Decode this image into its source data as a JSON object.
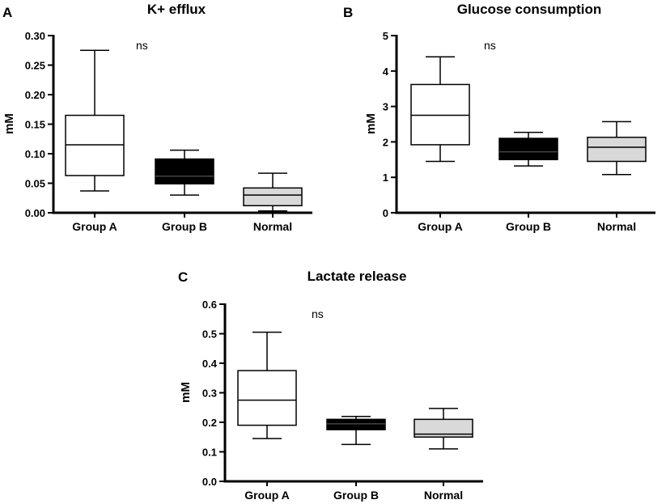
{
  "chart_data": [
    {
      "type": "box",
      "panel": "A",
      "title": "K+ efflux",
      "ylabel": "mM",
      "xlabel": "",
      "ylim": [
        0,
        0.3
      ],
      "yticks": [
        "0.00",
        "0.05",
        "0.10",
        "0.15",
        "0.20",
        "0.25",
        "0.30"
      ],
      "annotation": "ns",
      "categories": [
        "Group A",
        "Group B",
        "Normal"
      ],
      "boxes": [
        {
          "category": "Group A",
          "min": 0.037,
          "q1": 0.063,
          "median": 0.115,
          "q3": 0.165,
          "max": 0.275,
          "fill": "#ffffff"
        },
        {
          "category": "Group B",
          "min": 0.03,
          "q1": 0.049,
          "median": 0.062,
          "q3": 0.091,
          "max": 0.106,
          "fill": "#000000"
        },
        {
          "category": "Normal",
          "min": 0.003,
          "q1": 0.012,
          "median": 0.03,
          "q3": 0.042,
          "max": 0.067,
          "fill": "#d9d9d9"
        }
      ]
    },
    {
      "type": "box",
      "panel": "B",
      "title": "Glucose consumption",
      "ylabel": "mM",
      "xlabel": "",
      "ylim": [
        0,
        5
      ],
      "yticks": [
        "0",
        "1",
        "2",
        "3",
        "4",
        "5"
      ],
      "annotation": "ns",
      "categories": [
        "Group A",
        "Group B",
        "Normal"
      ],
      "boxes": [
        {
          "category": "Group A",
          "min": 1.45,
          "q1": 1.92,
          "median": 2.75,
          "q3": 3.62,
          "max": 4.4,
          "fill": "#ffffff"
        },
        {
          "category": "Group B",
          "min": 1.32,
          "q1": 1.5,
          "median": 1.72,
          "q3": 2.1,
          "max": 2.27,
          "fill": "#000000"
        },
        {
          "category": "Normal",
          "min": 1.08,
          "q1": 1.45,
          "median": 1.85,
          "q3": 2.13,
          "max": 2.57,
          "fill": "#d9d9d9"
        }
      ]
    },
    {
      "type": "box",
      "panel": "C",
      "title": "Lactate release",
      "ylabel": "mM",
      "xlabel": "",
      "ylim": [
        0,
        0.6
      ],
      "yticks": [
        "0.0",
        "0.1",
        "0.2",
        "0.3",
        "0.4",
        "0.5",
        "0.6"
      ],
      "annotation": "ns",
      "categories": [
        "Group A",
        "Group B",
        "Normal"
      ],
      "boxes": [
        {
          "category": "Group A",
          "min": 0.145,
          "q1": 0.19,
          "median": 0.275,
          "q3": 0.375,
          "max": 0.505,
          "fill": "#ffffff"
        },
        {
          "category": "Group B",
          "min": 0.125,
          "q1": 0.175,
          "median": 0.195,
          "q3": 0.21,
          "max": 0.22,
          "fill": "#000000"
        },
        {
          "category": "Normal",
          "min": 0.11,
          "q1": 0.15,
          "median": 0.16,
          "q3": 0.21,
          "max": 0.247,
          "fill": "#d9d9d9"
        }
      ]
    }
  ]
}
